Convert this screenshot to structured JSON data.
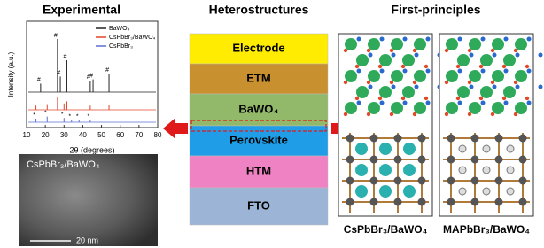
{
  "experimental": {
    "title": "Experimental",
    "chart": {
      "type": "stick",
      "xlabel": "2θ (degrees)",
      "ylabel": "Intensity (a.u.)",
      "xlim": [
        10,
        80
      ],
      "xticks": [
        10,
        20,
        30,
        40,
        50,
        60,
        70,
        80
      ],
      "ylim": [
        0,
        100
      ],
      "series": [
        {
          "name": "BaWO₄",
          "color": "#222222",
          "marker": "#",
          "x": [
            17.5,
            26.5,
            28,
            31.5,
            44,
            45.5,
            54
          ],
          "values": [
            12,
            75,
            22,
            45,
            16,
            18,
            26
          ]
        },
        {
          "name": "CsPbBr₃/BaWO₄",
          "color": "#e0452a",
          "x": [
            15,
            21,
            26.5,
            30,
            31.5,
            44,
            54
          ],
          "values": [
            6,
            8,
            18,
            9,
            12,
            6,
            7
          ]
        },
        {
          "name": "CsPbBr₃",
          "color": "#5a6fd0",
          "marker": "*",
          "x": [
            15,
            21,
            30,
            34,
            38,
            44
          ],
          "values": [
            5,
            8,
            6,
            3,
            3,
            3
          ]
        }
      ]
    },
    "tem_label": "CsPbBr₃/BaWO₄",
    "scale_bar": "20 nm"
  },
  "heterostructures": {
    "title": "Heterostructures",
    "layers": [
      {
        "label": "Electrode",
        "color": "#ffec00"
      },
      {
        "label": "ETM",
        "color": "#c8902e"
      },
      {
        "label": "BaWO₄",
        "color": "#92b86a"
      },
      {
        "label": "Perovskite",
        "color": "#1f9de6"
      },
      {
        "label": "HTM",
        "color": "#ee82c3"
      },
      {
        "label": "FTO",
        "color": "#9cb4d6"
      }
    ]
  },
  "first_principles": {
    "title": "First-principles",
    "structures": [
      "CsPbBr₃/BaWO₄",
      "MAPbBr₃/BaWO₄"
    ]
  }
}
